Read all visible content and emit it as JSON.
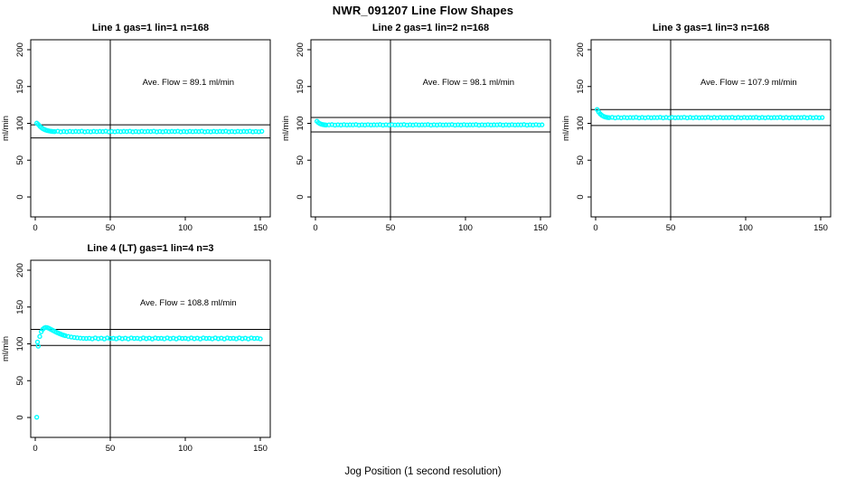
{
  "page": {
    "title": "NWR_091207  Line Flow Shapes",
    "xlabel": "Jog Position (1 second resolution)"
  },
  "style": {
    "marker_color": "#00FFFF",
    "line_color": "#000000",
    "background": "#ffffff"
  },
  "chart_data": [
    {
      "type": "scatter",
      "title": "Line 1 gas=1 lin=1 n=168",
      "annotation": "Ave. Flow =  89.1  ml/min",
      "ave_flow": 89.1,
      "ylabel": "ml/min",
      "xticks": [
        0,
        50,
        100,
        150
      ],
      "yticks": [
        0,
        50,
        100,
        150,
        200
      ],
      "xlim": [
        -3,
        156
      ],
      "ylim": [
        -27,
        216
      ],
      "vline_x": 50,
      "hlines": [
        98.0,
        80.2
      ],
      "points": [
        [
          1,
          100.3
        ],
        [
          2,
          98.6
        ],
        [
          3,
          96.2
        ],
        [
          4,
          94.4
        ],
        [
          5,
          92.9
        ],
        [
          6,
          91.8
        ],
        [
          7,
          90.9
        ],
        [
          8,
          90.3
        ],
        [
          9,
          89.8
        ],
        [
          10,
          89.4
        ],
        [
          11,
          89.1
        ],
        [
          12,
          88.9
        ],
        [
          13,
          88.8
        ],
        [
          15,
          89.3
        ],
        [
          17,
          88.5
        ],
        [
          19,
          89.0
        ],
        [
          21,
          88.6
        ],
        [
          23,
          89.2
        ],
        [
          25,
          88.7
        ],
        [
          27,
          89.1
        ],
        [
          29,
          88.8
        ],
        [
          31,
          89.3
        ],
        [
          33,
          88.5
        ],
        [
          35,
          89.0
        ],
        [
          37,
          88.6
        ],
        [
          39,
          89.2
        ],
        [
          41,
          88.7
        ],
        [
          43,
          89.1
        ],
        [
          45,
          88.8
        ],
        [
          47,
          89.3
        ],
        [
          49,
          88.5
        ],
        [
          51,
          89.0
        ],
        [
          53,
          88.6
        ],
        [
          55,
          89.2
        ],
        [
          57,
          88.7
        ],
        [
          59,
          89.1
        ],
        [
          61,
          88.8
        ],
        [
          63,
          89.3
        ],
        [
          65,
          88.5
        ],
        [
          67,
          89.0
        ],
        [
          69,
          88.6
        ],
        [
          71,
          89.2
        ],
        [
          73,
          88.7
        ],
        [
          75,
          89.1
        ],
        [
          77,
          88.8
        ],
        [
          79,
          89.3
        ],
        [
          81,
          88.5
        ],
        [
          83,
          89.0
        ],
        [
          85,
          88.6
        ],
        [
          87,
          89.2
        ],
        [
          89,
          88.7
        ],
        [
          91,
          89.1
        ],
        [
          93,
          88.8
        ],
        [
          95,
          89.3
        ],
        [
          97,
          88.5
        ],
        [
          99,
          89.0
        ],
        [
          101,
          88.6
        ],
        [
          103,
          89.2
        ],
        [
          105,
          88.7
        ],
        [
          107,
          89.1
        ],
        [
          109,
          88.8
        ],
        [
          111,
          89.3
        ],
        [
          113,
          88.5
        ],
        [
          115,
          89.0
        ],
        [
          117,
          88.6
        ],
        [
          119,
          89.2
        ],
        [
          121,
          88.7
        ],
        [
          123,
          89.1
        ],
        [
          125,
          88.8
        ],
        [
          127,
          89.3
        ],
        [
          129,
          88.5
        ],
        [
          131,
          89.0
        ],
        [
          133,
          88.6
        ],
        [
          135,
          89.2
        ],
        [
          137,
          88.7
        ],
        [
          139,
          89.1
        ],
        [
          141,
          88.8
        ],
        [
          143,
          89.3
        ],
        [
          145,
          88.5
        ],
        [
          147,
          89.0
        ],
        [
          149,
          88.6
        ],
        [
          151,
          89.2
        ]
      ]
    },
    {
      "type": "scatter",
      "title": "Line 2 gas=1 lin=2 n=168",
      "annotation": "Ave. Flow =  98.1  ml/min",
      "ave_flow": 98.1,
      "ylabel": "ml/min",
      "xticks": [
        0,
        50,
        100,
        150
      ],
      "yticks": [
        0,
        50,
        100,
        150,
        200
      ],
      "xlim": [
        -3,
        156
      ],
      "ylim": [
        -27,
        216
      ],
      "vline_x": 50,
      "hlines": [
        107.9,
        88.3
      ],
      "points": [
        [
          1,
          102.8
        ],
        [
          2,
          100.9
        ],
        [
          3,
          99.6
        ],
        [
          4,
          98.8
        ],
        [
          5,
          98.3
        ],
        [
          6,
          98.0
        ],
        [
          7,
          97.8
        ],
        [
          9,
          97.9
        ],
        [
          11,
          98.3
        ],
        [
          13,
          97.6
        ],
        [
          15,
          98.1
        ],
        [
          17,
          97.7
        ],
        [
          19,
          98.2
        ],
        [
          21,
          97.8
        ],
        [
          23,
          98.0
        ],
        [
          25,
          97.9
        ],
        [
          27,
          98.3
        ],
        [
          29,
          97.6
        ],
        [
          31,
          98.1
        ],
        [
          33,
          97.7
        ],
        [
          35,
          98.2
        ],
        [
          37,
          97.8
        ],
        [
          39,
          98.0
        ],
        [
          41,
          97.9
        ],
        [
          43,
          98.3
        ],
        [
          45,
          97.6
        ],
        [
          47,
          98.1
        ],
        [
          49,
          97.7
        ],
        [
          51,
          98.2
        ],
        [
          53,
          97.8
        ],
        [
          55,
          98.0
        ],
        [
          57,
          97.9
        ],
        [
          59,
          98.3
        ],
        [
          61,
          97.6
        ],
        [
          63,
          98.1
        ],
        [
          65,
          97.7
        ],
        [
          67,
          98.2
        ],
        [
          69,
          97.8
        ],
        [
          71,
          98.0
        ],
        [
          73,
          97.9
        ],
        [
          75,
          98.3
        ],
        [
          77,
          97.6
        ],
        [
          79,
          98.1
        ],
        [
          81,
          97.7
        ],
        [
          83,
          98.2
        ],
        [
          85,
          97.8
        ],
        [
          87,
          98.0
        ],
        [
          89,
          97.9
        ],
        [
          91,
          98.3
        ],
        [
          93,
          97.6
        ],
        [
          95,
          98.1
        ],
        [
          97,
          97.7
        ],
        [
          99,
          98.2
        ],
        [
          101,
          97.8
        ],
        [
          103,
          98.0
        ],
        [
          105,
          97.9
        ],
        [
          107,
          98.3
        ],
        [
          109,
          97.6
        ],
        [
          111,
          98.1
        ],
        [
          113,
          97.7
        ],
        [
          115,
          98.2
        ],
        [
          117,
          97.8
        ],
        [
          119,
          98.0
        ],
        [
          121,
          97.9
        ],
        [
          123,
          98.3
        ],
        [
          125,
          97.6
        ],
        [
          127,
          98.1
        ],
        [
          129,
          97.7
        ],
        [
          131,
          98.2
        ],
        [
          133,
          97.8
        ],
        [
          135,
          98.0
        ],
        [
          137,
          97.9
        ],
        [
          139,
          98.3
        ],
        [
          141,
          97.6
        ],
        [
          143,
          98.1
        ],
        [
          145,
          97.7
        ],
        [
          147,
          98.2
        ],
        [
          149,
          97.8
        ],
        [
          151,
          98.0
        ]
      ]
    },
    {
      "type": "scatter",
      "title": "Line 3 gas=1 lin=3 n=168",
      "annotation": "Ave. Flow =  107.9  ml/min",
      "ave_flow": 107.9,
      "ylabel": "ml/min",
      "xticks": [
        0,
        50,
        100,
        150
      ],
      "yticks": [
        0,
        50,
        100,
        150,
        200
      ],
      "xlim": [
        -3,
        156
      ],
      "ylim": [
        -27,
        216
      ],
      "vline_x": 50,
      "hlines": [
        118.7,
        97.1
      ],
      "points": [
        [
          1,
          118.8
        ],
        [
          2,
          115.6
        ],
        [
          3,
          113.0
        ],
        [
          4,
          111.1
        ],
        [
          5,
          109.8
        ],
        [
          6,
          108.9
        ],
        [
          7,
          108.3
        ],
        [
          8,
          107.9
        ],
        [
          9,
          107.7
        ],
        [
          11,
          108.2
        ],
        [
          13,
          107.4
        ],
        [
          15,
          108.0
        ],
        [
          17,
          107.5
        ],
        [
          19,
          108.1
        ],
        [
          21,
          107.6
        ],
        [
          23,
          107.9
        ],
        [
          25,
          107.7
        ],
        [
          27,
          108.2
        ],
        [
          29,
          107.4
        ],
        [
          31,
          108.0
        ],
        [
          33,
          107.5
        ],
        [
          35,
          108.1
        ],
        [
          37,
          107.6
        ],
        [
          39,
          107.9
        ],
        [
          41,
          107.7
        ],
        [
          43,
          108.2
        ],
        [
          45,
          107.4
        ],
        [
          47,
          108.0
        ],
        [
          49,
          107.5
        ],
        [
          51,
          108.1
        ],
        [
          53,
          107.6
        ],
        [
          55,
          107.9
        ],
        [
          57,
          107.7
        ],
        [
          59,
          108.2
        ],
        [
          61,
          107.4
        ],
        [
          63,
          108.0
        ],
        [
          65,
          107.5
        ],
        [
          67,
          108.1
        ],
        [
          69,
          107.6
        ],
        [
          71,
          107.9
        ],
        [
          73,
          107.7
        ],
        [
          75,
          108.2
        ],
        [
          77,
          107.4
        ],
        [
          79,
          108.0
        ],
        [
          81,
          107.5
        ],
        [
          83,
          108.1
        ],
        [
          85,
          107.6
        ],
        [
          87,
          107.9
        ],
        [
          89,
          107.7
        ],
        [
          91,
          108.2
        ],
        [
          93,
          107.4
        ],
        [
          95,
          108.0
        ],
        [
          97,
          107.5
        ],
        [
          99,
          108.1
        ],
        [
          101,
          107.6
        ],
        [
          103,
          107.9
        ],
        [
          105,
          107.7
        ],
        [
          107,
          108.2
        ],
        [
          109,
          107.4
        ],
        [
          111,
          108.0
        ],
        [
          113,
          107.5
        ],
        [
          115,
          108.1
        ],
        [
          117,
          107.6
        ],
        [
          119,
          107.9
        ],
        [
          121,
          107.7
        ],
        [
          123,
          108.2
        ],
        [
          125,
          107.4
        ],
        [
          127,
          108.0
        ],
        [
          129,
          107.5
        ],
        [
          131,
          108.1
        ],
        [
          133,
          107.6
        ],
        [
          135,
          107.9
        ],
        [
          137,
          107.7
        ],
        [
          139,
          108.2
        ],
        [
          141,
          107.4
        ],
        [
          143,
          108.0
        ],
        [
          145,
          107.5
        ],
        [
          147,
          108.1
        ],
        [
          149,
          107.6
        ],
        [
          151,
          107.9
        ]
      ]
    },
    {
      "type": "scatter",
      "title": "Line 4 (LT) gas=1 lin=4 n=3",
      "annotation": "Ave. Flow =  108.8  ml/min",
      "ave_flow": 108.8,
      "ylabel": "ml/min",
      "xticks": [
        0,
        50,
        100,
        150
      ],
      "yticks": [
        0,
        50,
        100,
        150,
        200
      ],
      "xlim": [
        -3,
        156
      ],
      "ylim": [
        -27,
        216
      ],
      "vline_x": 50,
      "hlines": [
        119.7,
        97.9
      ],
      "points": [
        [
          1,
          0.4
        ],
        [
          1.5,
          102.5
        ],
        [
          2,
          96.8
        ],
        [
          3,
          110.0
        ],
        [
          4,
          116.5
        ],
        [
          5,
          119.8
        ],
        [
          6,
          121.6
        ],
        [
          7,
          122.3
        ],
        [
          8,
          122.0
        ],
        [
          9,
          121.2
        ],
        [
          10,
          120.2
        ],
        [
          11,
          119.1
        ],
        [
          12,
          118.0
        ],
        [
          13,
          116.9
        ],
        [
          14,
          115.9
        ],
        [
          15,
          114.9
        ],
        [
          16,
          114.0
        ],
        [
          17,
          113.2
        ],
        [
          18,
          112.4
        ],
        [
          19,
          111.7
        ],
        [
          20,
          111.1
        ],
        [
          22,
          110.1
        ],
        [
          24,
          109.3
        ],
        [
          26,
          108.7
        ],
        [
          28,
          108.2
        ],
        [
          30,
          107.8
        ],
        [
          32,
          107.5
        ],
        [
          34,
          107.3
        ],
        [
          36,
          107.6
        ],
        [
          38,
          106.8
        ],
        [
          40,
          108.1
        ],
        [
          42,
          107.0
        ],
        [
          44,
          107.8
        ],
        [
          46,
          106.7
        ],
        [
          48,
          108.0
        ],
        [
          50,
          107.3
        ],
        [
          52,
          107.6
        ],
        [
          54,
          106.8
        ],
        [
          56,
          108.1
        ],
        [
          58,
          107.0
        ],
        [
          60,
          107.8
        ],
        [
          62,
          106.7
        ],
        [
          64,
          108.0
        ],
        [
          66,
          107.3
        ],
        [
          68,
          107.6
        ],
        [
          70,
          106.8
        ],
        [
          72,
          108.1
        ],
        [
          74,
          107.0
        ],
        [
          76,
          107.8
        ],
        [
          78,
          106.7
        ],
        [
          80,
          108.0
        ],
        [
          82,
          107.3
        ],
        [
          84,
          107.6
        ],
        [
          86,
          106.8
        ],
        [
          88,
          108.1
        ],
        [
          90,
          107.0
        ],
        [
          92,
          107.8
        ],
        [
          94,
          106.7
        ],
        [
          96,
          108.0
        ],
        [
          98,
          107.3
        ],
        [
          100,
          107.6
        ],
        [
          102,
          106.8
        ],
        [
          104,
          108.1
        ],
        [
          106,
          107.0
        ],
        [
          108,
          107.8
        ],
        [
          110,
          106.7
        ],
        [
          112,
          108.0
        ],
        [
          114,
          107.3
        ],
        [
          116,
          107.6
        ],
        [
          118,
          106.8
        ],
        [
          120,
          108.1
        ],
        [
          122,
          107.0
        ],
        [
          124,
          107.8
        ],
        [
          126,
          106.7
        ],
        [
          128,
          108.0
        ],
        [
          130,
          107.3
        ],
        [
          132,
          107.6
        ],
        [
          134,
          106.8
        ],
        [
          136,
          108.1
        ],
        [
          138,
          107.0
        ],
        [
          140,
          107.8
        ],
        [
          142,
          106.7
        ],
        [
          144,
          108.0
        ],
        [
          146,
          107.3
        ],
        [
          148,
          107.6
        ],
        [
          150,
          106.8
        ]
      ]
    }
  ]
}
